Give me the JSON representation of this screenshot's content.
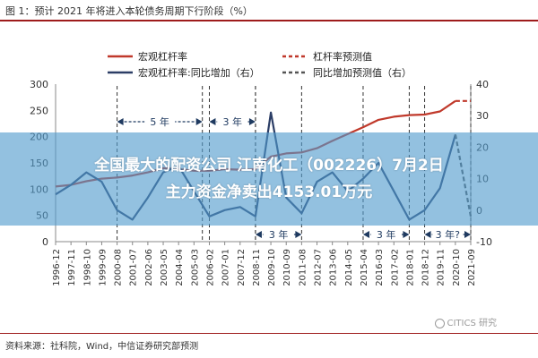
{
  "figure_title": "图 1：预计 2021 年将进入本轮债务周期下行阶段（%）",
  "source": "资料来源：社科院，Wind，中信证券研究部预测",
  "watermark": "CITICS 研究",
  "overlay": {
    "line1": "全国最大的配资公司 江南化工（002226）7月2日",
    "line2": "主力资金净卖出4153.01万元"
  },
  "chart_data": {
    "type": "line",
    "x_ticks": [
      "1996-12",
      "1997-11",
      "1998-10",
      "1999-09",
      "2000-08",
      "2001-07",
      "2002-06",
      "2003-05",
      "2004-04",
      "2005-03",
      "2006-02",
      "2007-01",
      "2007-12",
      "2008-11",
      "2009-10",
      "2010-09",
      "2011-08",
      "2012-07",
      "2013-06",
      "2014-05",
      "2015-04",
      "2016-03",
      "2017-02",
      "2018-01",
      "2018-12",
      "2019-11",
      "2020-10",
      "2021-09"
    ],
    "y_left_ticks": [
      "0",
      "50",
      "100",
      "150",
      "200",
      "250",
      "300"
    ],
    "y_right_ticks": [
      "-10",
      "0",
      "10",
      "20",
      "30",
      "40"
    ],
    "ylim_left": [
      0,
      300
    ],
    "ylim_right": [
      -10,
      40
    ],
    "legend": [
      {
        "name": "宏观杠杆率",
        "style": "solid",
        "color": "#c0392b"
      },
      {
        "name": "杠杆率预测值",
        "style": "dashed",
        "color": "#c0392b"
      },
      {
        "name": "宏观杠杆率:同比增加（右）",
        "style": "solid",
        "color": "#2c3e66"
      },
      {
        "name": "同比增加预测值（右）",
        "style": "dashed",
        "color": "#555555"
      }
    ],
    "series": [
      {
        "name": "宏观杠杆率",
        "axis": "left",
        "x": [
          "1996-12",
          "1997-11",
          "1998-10",
          "1999-09",
          "2000-08",
          "2001-07",
          "2002-06",
          "2003-05",
          "2004-04",
          "2005-03",
          "2006-02",
          "2007-01",
          "2007-12",
          "2008-11",
          "2009-10",
          "2010-09",
          "2011-08",
          "2012-07",
          "2013-06",
          "2014-05",
          "2015-04",
          "2016-03",
          "2017-02",
          "2018-01",
          "2018-12",
          "2019-11",
          "2020-10"
        ],
        "values": [
          105,
          108,
          115,
          120,
          122,
          126,
          132,
          140,
          138,
          135,
          135,
          138,
          137,
          138,
          162,
          168,
          170,
          178,
          192,
          205,
          218,
          232,
          238,
          241,
          242,
          248,
          268
        ]
      },
      {
        "name": "杠杆率预测值",
        "axis": "left",
        "x": [
          "2020-10",
          "2021-09"
        ],
        "values": [
          268,
          268
        ]
      },
      {
        "name": "宏观杠杆率:同比增加（右）",
        "axis": "right",
        "x": [
          "1996-12",
          "1997-11",
          "1998-10",
          "1999-09",
          "2000-08",
          "2001-07",
          "2002-06",
          "2003-05",
          "2004-04",
          "2005-03",
          "2006-02",
          "2007-01",
          "2007-12",
          "2008-11",
          "2009-10",
          "2010-09",
          "2011-08",
          "2012-07",
          "2013-06",
          "2014-05",
          "2015-04",
          "2016-03",
          "2017-02",
          "2018-01",
          "2018-12",
          "2019-11",
          "2020-10"
        ],
        "values": [
          5,
          8,
          12,
          9,
          0,
          -3,
          4,
          12,
          14,
          6,
          -2,
          0,
          1,
          -2,
          31,
          4,
          -1,
          9,
          12,
          6,
          10,
          15,
          6,
          -3,
          0,
          7,
          24
        ]
      },
      {
        "name": "同比增加预测值（右）",
        "axis": "right",
        "x": [
          "2020-10",
          "2021-09"
        ],
        "values": [
          24,
          -2
        ]
      }
    ],
    "period_annotations": [
      {
        "label": "5 年",
        "from": "2000-08",
        "to": "2005-09",
        "position": "top"
      },
      {
        "label": "3 年",
        "from": "2006-02",
        "to": "2008-11",
        "position": "top"
      },
      {
        "label": "3 年",
        "from": "2008-11",
        "to": "2011-08",
        "position": "bottom"
      },
      {
        "label": "3 年",
        "from": "2015-04",
        "to": "2018-01",
        "position": "bottom"
      },
      {
        "label": "3 年?",
        "from": "2018-12",
        "to": "2021-09",
        "position": "bottom"
      }
    ]
  }
}
